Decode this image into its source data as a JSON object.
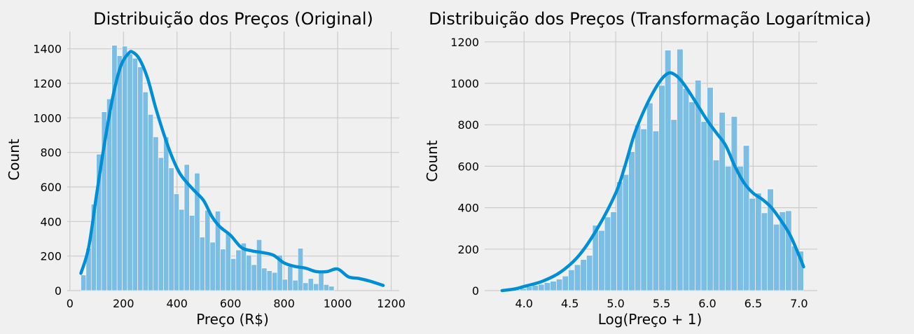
{
  "chart_data": [
    {
      "type": "histogram",
      "title": "Distribuição dos Preços (Original)",
      "xlabel": "Preço (R$)",
      "ylabel": "Count",
      "xlim": [
        -10,
        1230
      ],
      "ylim": [
        0,
        1500
      ],
      "xticks": [
        0,
        200,
        400,
        600,
        800,
        1000,
        1200
      ],
      "yticks": [
        0,
        200,
        400,
        600,
        800,
        1000,
        1200,
        1400
      ],
      "grid": true,
      "bar_color": "#7bbde3",
      "kde_color": "#008fd5",
      "bin_start": 41,
      "bin_width": 19.3,
      "counts": [
        90,
        245,
        500,
        790,
        1035,
        1110,
        1420,
        1360,
        1415,
        1370,
        1345,
        1295,
        1150,
        1020,
        890,
        770,
        890,
        710,
        560,
        470,
        730,
        435,
        680,
        310,
        465,
        280,
        460,
        240,
        330,
        185,
        235,
        275,
        205,
        150,
        295,
        130,
        115,
        105,
        205,
        65,
        140,
        60,
        245,
        45,
        70,
        40,
        100,
        35,
        25
      ],
      "kde": {
        "x": [
          41,
          70,
          100,
          130,
          160,
          190,
          220,
          235,
          260,
          290,
          320,
          350,
          380,
          410,
          440,
          470,
          500,
          530,
          560,
          600,
          640,
          680,
          720,
          760,
          800,
          840,
          880,
          920,
          960,
          1000,
          1040,
          1080,
          1120,
          1170
        ],
        "y": [
          100,
          250,
          560,
          860,
          1120,
          1300,
          1375,
          1380,
          1340,
          1230,
          1060,
          910,
          780,
          680,
          620,
          570,
          520,
          430,
          370,
          320,
          250,
          230,
          220,
          205,
          160,
          140,
          130,
          110,
          110,
          125,
          80,
          70,
          55,
          30
        ]
      }
    },
    {
      "type": "histogram",
      "title": "Distribuição dos Preços (Transformação Logarítmica)",
      "xlabel": "Log(Preço + 1)",
      "ylabel": "Count",
      "xlim": [
        3.57,
        7.2
      ],
      "ylim": [
        0,
        1250
      ],
      "xticks": [
        4.0,
        4.5,
        5.0,
        5.5,
        6.0,
        6.5,
        7.0
      ],
      "yticks": [
        0,
        200,
        400,
        600,
        800,
        1000,
        1200
      ],
      "grid": true,
      "bar_color": "#7bbde3",
      "kde_color": "#008fd5",
      "bin_start": 3.76,
      "bin_width": 0.0658,
      "counts": [
        2,
        3,
        5,
        10,
        18,
        25,
        30,
        38,
        45,
        55,
        70,
        100,
        125,
        150,
        170,
        315,
        290,
        355,
        380,
        525,
        560,
        670,
        800,
        780,
        905,
        770,
        990,
        1160,
        825,
        1165,
        975,
        910,
        1015,
        815,
        980,
        630,
        860,
        600,
        840,
        600,
        700,
        445,
        470,
        375,
        490,
        320,
        380,
        385,
        215,
        190
      ],
      "kde": {
        "x": [
          3.76,
          3.9,
          4.0,
          4.2,
          4.4,
          4.6,
          4.8,
          5.0,
          5.1,
          5.2,
          5.3,
          5.4,
          5.5,
          5.58,
          5.65,
          5.72,
          5.8,
          5.9,
          6.0,
          6.1,
          6.2,
          6.3,
          6.4,
          6.5,
          6.6,
          6.7,
          6.8,
          6.9,
          7.0,
          7.05
        ],
        "y": [
          0,
          8,
          20,
          45,
          90,
          170,
          300,
          470,
          600,
          750,
          860,
          950,
          1020,
          1050,
          1040,
          1010,
          960,
          890,
          820,
          760,
          700,
          600,
          520,
          470,
          440,
          400,
          340,
          270,
          170,
          115
        ]
      }
    }
  ]
}
